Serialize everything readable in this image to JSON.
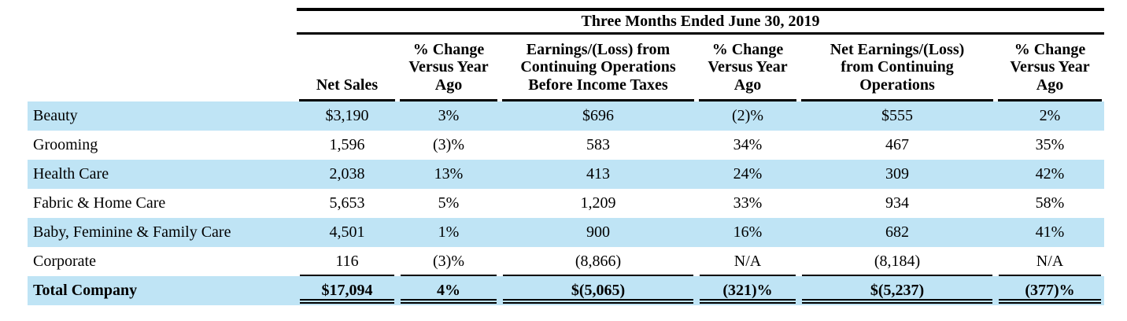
{
  "colors": {
    "row_highlight": "#bfe4f5",
    "rule": "#000000",
    "text": "#000000",
    "background": "#ffffff"
  },
  "table": {
    "period_title": "Three Months Ended June 30, 2019",
    "columns": [
      "Net Sales",
      "% Change Versus Year Ago",
      "Earnings/(Loss) from Continuing Operations Before Income Taxes",
      "% Change Versus Year Ago",
      "Net Earnings/(Loss) from Continuing Operations",
      "% Change Versus Year Ago"
    ],
    "rows": [
      {
        "label": "Beauty",
        "values": [
          "$3,190",
          "3%",
          "$696",
          "(2)%",
          "$555",
          "2%"
        ]
      },
      {
        "label": "Grooming",
        "values": [
          "1,596",
          "(3)%",
          "583",
          "34%",
          "467",
          "35%"
        ]
      },
      {
        "label": "Health Care",
        "values": [
          "2,038",
          "13%",
          "413",
          "24%",
          "309",
          "42%"
        ]
      },
      {
        "label": "Fabric & Home Care",
        "values": [
          "5,653",
          "5%",
          "1,209",
          "33%",
          "934",
          "58%"
        ]
      },
      {
        "label": "Baby, Feminine & Family Care",
        "values": [
          "4,501",
          "1%",
          "900",
          "16%",
          "682",
          "41%"
        ]
      },
      {
        "label": "Corporate",
        "values": [
          "116",
          "(3)%",
          "(8,866)",
          "N/A",
          "(8,184)",
          "N/A"
        ]
      },
      {
        "label": "Total Company",
        "values": [
          "$17,094",
          "4%",
          "$(5,065)",
          "(321)%",
          "$(5,237)",
          "(377)%"
        ]
      }
    ]
  }
}
